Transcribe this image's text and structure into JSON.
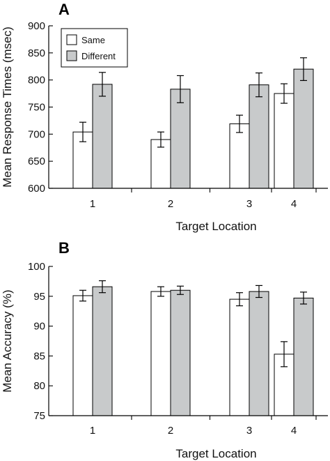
{
  "colors": {
    "same": "#ffffff",
    "different": "#c8cacb",
    "stroke": "#000000"
  },
  "chart_data": [
    {
      "panel_label": "A",
      "type": "bar",
      "xlabel": "Target Location",
      "ylabel": "Mean Response Times (msec)",
      "categories": [
        "1",
        "2",
        "3",
        "4"
      ],
      "ylim": [
        600,
        900
      ],
      "yticks": [
        600,
        650,
        700,
        750,
        800,
        850,
        900
      ],
      "grid": false,
      "legend": {
        "placement": "top-left",
        "entries": [
          "Same",
          "Different"
        ]
      },
      "series": [
        {
          "name": "Same",
          "values": [
            704,
            690,
            719,
            775
          ],
          "errors": [
            18,
            14,
            16,
            18
          ]
        },
        {
          "name": "Different",
          "values": [
            792,
            783,
            791,
            820
          ],
          "errors": [
            22,
            25,
            22,
            21
          ]
        }
      ]
    },
    {
      "panel_label": "B",
      "type": "bar",
      "xlabel": "Target Location",
      "ylabel": "Mean Accuracy (%)",
      "categories": [
        "1",
        "2",
        "3",
        "4"
      ],
      "ylim": [
        75,
        100
      ],
      "yticks": [
        75,
        80,
        85,
        90,
        95,
        100
      ],
      "grid": false,
      "series": [
        {
          "name": "Same",
          "values": [
            95.1,
            95.8,
            94.5,
            85.3
          ],
          "errors": [
            0.9,
            0.8,
            1.1,
            2.1
          ]
        },
        {
          "name": "Different",
          "values": [
            96.6,
            96.0,
            95.8,
            94.7
          ],
          "errors": [
            1.0,
            0.7,
            1.0,
            1.0
          ]
        }
      ]
    }
  ]
}
